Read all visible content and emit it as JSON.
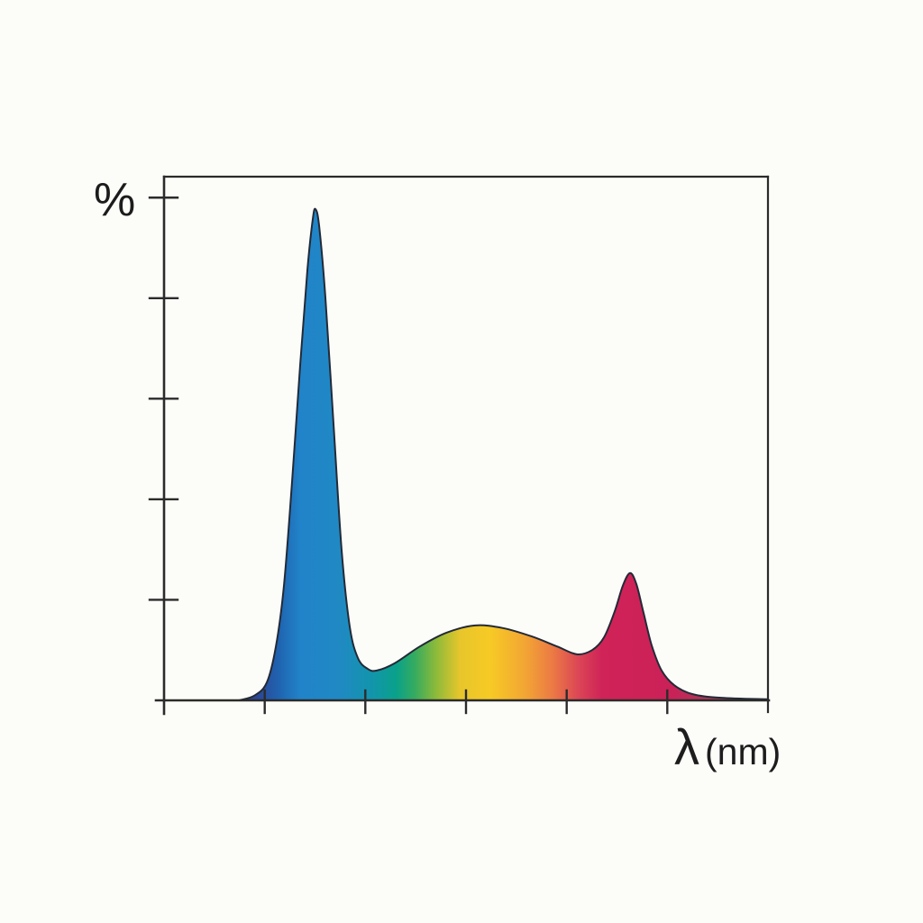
{
  "labels": {
    "y": "%",
    "x_lambda": "λ",
    "x_unit": "(nm)"
  },
  "colors": {
    "axis": "#2b2b2b",
    "curve_outline": "#232a36",
    "background": "#fcfcf9",
    "text": "#1c1c1c"
  },
  "chart_data": {
    "type": "area",
    "title": "",
    "xlabel": "λ (nm)",
    "ylabel": "%",
    "grid": false,
    "legend": null,
    "axis_note": "ticks are unlabeled; x is wavelength fraction 0-1 across axis, y is relative intensity in % of axis height",
    "x_ticks": [
      0.1667,
      0.3333,
      0.5,
      0.6667,
      0.8333
    ],
    "y_ticks": [
      0.192,
      0.384,
      0.576,
      0.768,
      0.96
    ],
    "features": {
      "blue_peak": {
        "x": 0.251,
        "y_percent": 93.8
      },
      "valley": {
        "x": 0.352,
        "y_percent": 5.7
      },
      "yellow_hump": {
        "x": 0.515,
        "y_percent": 14.3
      },
      "saddle": {
        "x": 0.684,
        "y_percent": 8.8
      },
      "red_peak": {
        "x": 0.772,
        "y_percent": 24.3
      }
    },
    "points": [
      {
        "x": 0.1239,
        "y_percent": 0.0
      },
      {
        "x": 0.1493,
        "y_percent": 0.9
      },
      {
        "x": 0.1701,
        "y_percent": 3.4
      },
      {
        "x": 0.1851,
        "y_percent": 10.2
      },
      {
        "x": 0.1985,
        "y_percent": 21.9
      },
      {
        "x": 0.2119,
        "y_percent": 41.7
      },
      {
        "x": 0.2254,
        "y_percent": 64.0
      },
      {
        "x": 0.2373,
        "y_percent": 82.1
      },
      {
        "x": 0.2463,
        "y_percent": 91.9
      },
      {
        "x": 0.2507,
        "y_percent": 93.8
      },
      {
        "x": 0.2567,
        "y_percent": 90.7
      },
      {
        "x": 0.2672,
        "y_percent": 76.9
      },
      {
        "x": 0.2806,
        "y_percent": 52.8
      },
      {
        "x": 0.294,
        "y_percent": 28.7
      },
      {
        "x": 0.3075,
        "y_percent": 14.1
      },
      {
        "x": 0.3209,
        "y_percent": 8.1
      },
      {
        "x": 0.3373,
        "y_percent": 6.0
      },
      {
        "x": 0.3522,
        "y_percent": 5.7
      },
      {
        "x": 0.3821,
        "y_percent": 7.1
      },
      {
        "x": 0.4224,
        "y_percent": 10.2
      },
      {
        "x": 0.4672,
        "y_percent": 12.9
      },
      {
        "x": 0.5149,
        "y_percent": 14.3
      },
      {
        "x": 0.5612,
        "y_percent": 13.8
      },
      {
        "x": 0.609,
        "y_percent": 12.2
      },
      {
        "x": 0.6507,
        "y_percent": 10.3
      },
      {
        "x": 0.6836,
        "y_percent": 8.8
      },
      {
        "x": 0.709,
        "y_percent": 9.6
      },
      {
        "x": 0.7284,
        "y_percent": 12.0
      },
      {
        "x": 0.7463,
        "y_percent": 17.0
      },
      {
        "x": 0.7597,
        "y_percent": 21.9
      },
      {
        "x": 0.7716,
        "y_percent": 24.3
      },
      {
        "x": 0.7821,
        "y_percent": 22.2
      },
      {
        "x": 0.794,
        "y_percent": 16.7
      },
      {
        "x": 0.8075,
        "y_percent": 10.5
      },
      {
        "x": 0.8239,
        "y_percent": 5.7
      },
      {
        "x": 0.8448,
        "y_percent": 2.9
      },
      {
        "x": 0.8746,
        "y_percent": 1.2
      },
      {
        "x": 0.9224,
        "y_percent": 0.5
      },
      {
        "x": 1.0,
        "y_percent": 0.2
      }
    ],
    "spectrum_gradient": [
      {
        "pos": 0.115,
        "color": "#323a7e"
      },
      {
        "pos": 0.155,
        "color": "#2b4796"
      },
      {
        "pos": 0.19,
        "color": "#1f63b0"
      },
      {
        "pos": 0.225,
        "color": "#2183c9"
      },
      {
        "pos": 0.29,
        "color": "#2089c4"
      },
      {
        "pos": 0.345,
        "color": "#1295ab"
      },
      {
        "pos": 0.385,
        "color": "#0aa18a"
      },
      {
        "pos": 0.415,
        "color": "#35ab5f"
      },
      {
        "pos": 0.45,
        "color": "#8cba3a"
      },
      {
        "pos": 0.49,
        "color": "#e7c62b"
      },
      {
        "pos": 0.54,
        "color": "#f7ca25"
      },
      {
        "pos": 0.6,
        "color": "#f2a434"
      },
      {
        "pos": 0.645,
        "color": "#eb7845"
      },
      {
        "pos": 0.685,
        "color": "#dc4755"
      },
      {
        "pos": 0.725,
        "color": "#d02358"
      },
      {
        "pos": 0.84,
        "color": "#ca2158"
      },
      {
        "pos": 0.92,
        "color": "#a33f58"
      },
      {
        "pos": 1.0,
        "color": "#5a5258"
      }
    ]
  }
}
